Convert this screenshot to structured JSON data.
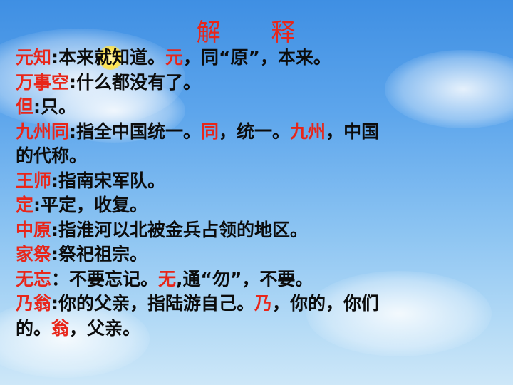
{
  "title": "解 释",
  "lines": [
    [
      "元知",
      ":本来就知道。",
      "元",
      "，同“原”，本来。"
    ],
    [
      "万事空",
      ":什么都没有了。"
    ],
    [
      "但",
      ":只。"
    ],
    [
      "九州同",
      ":指全中国统一。",
      "同",
      "，统一。",
      "九州",
      "，中国"
    ],
    [
      "",
      "的代称。"
    ],
    [
      "王师",
      ":指南宋军队。"
    ],
    [
      "定",
      ":平定，收复。"
    ],
    [
      "中原",
      ":指淮河以北被金兵占领的地区。"
    ],
    [
      "家祭",
      ":祭祀祖宗。"
    ],
    [
      "无忘",
      "：不要忘记。",
      "无",
      ",通“勿”，不要。"
    ],
    [
      "乃翁",
      ":你的父亲，指陆游自己。",
      "乃",
      "，你的，你们"
    ],
    [
      "",
      "的。",
      "翁",
      "，父亲。"
    ]
  ]
}
